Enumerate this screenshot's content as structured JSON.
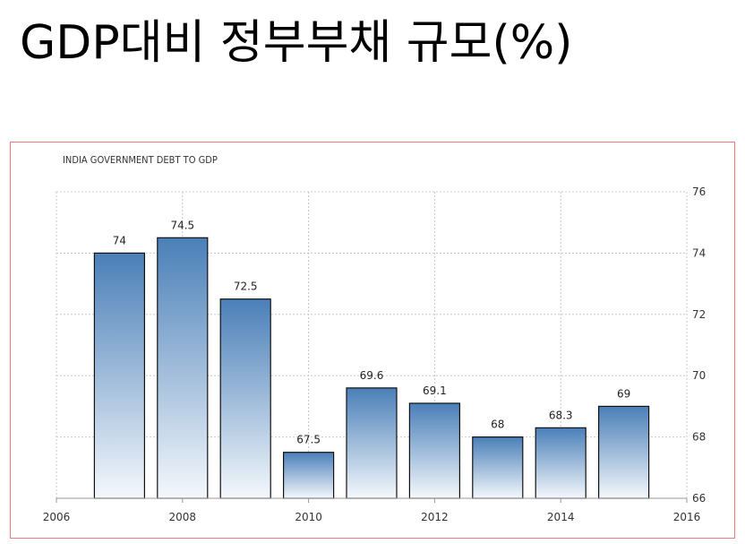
{
  "slide": {
    "title": "GDP대비 정부부채 규모(%)"
  },
  "chart_data": {
    "type": "bar",
    "title": "INDIA GOVERNMENT DEBT TO GDP",
    "xlabel": "",
    "ylabel": "",
    "x": [
      2007,
      2008,
      2009,
      2010,
      2011,
      2012,
      2013,
      2014,
      2015
    ],
    "values": [
      74,
      74.5,
      72.5,
      67.5,
      69.6,
      69.1,
      68,
      68.3,
      69
    ],
    "labels": [
      "74",
      "74.5",
      "72.5",
      "67.5",
      "69.6",
      "69.1",
      "68",
      "68.3",
      "69"
    ],
    "xlim": [
      2006,
      2016
    ],
    "ylim": [
      66,
      76
    ],
    "x_ticks": [
      "2006",
      "2008",
      "2010",
      "2012",
      "2014",
      "2016"
    ],
    "y_ticks": [
      "66",
      "68",
      "70",
      "72",
      "74",
      "76"
    ],
    "y_axis_side": "right",
    "grid": true,
    "legend": "none",
    "colors": {
      "bar_top": "#4a7fb8",
      "bar_bottom": "#f4f8fc",
      "bar_stroke": "#111111",
      "grid": "#c8c8c8",
      "frame": "#e87b7b"
    }
  }
}
